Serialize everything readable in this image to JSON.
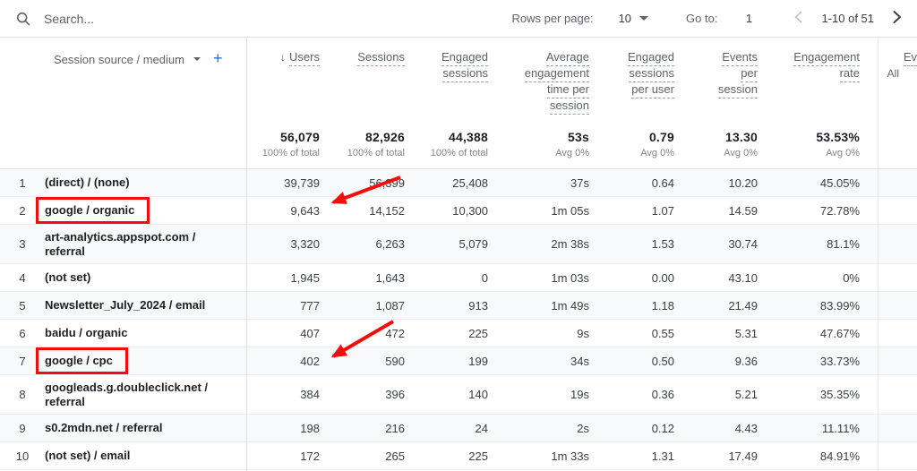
{
  "toolbar": {
    "search_placeholder": "Search...",
    "rows_per_page_label": "Rows per page:",
    "rows_per_page_value": "10",
    "goto_label": "Go to:",
    "goto_value": "1",
    "pagination_range": "1-10 of 51"
  },
  "table": {
    "dimension_header": "Session source / medium",
    "add_label": "+",
    "columns": [
      {
        "id": "users",
        "lines": [
          "Users"
        ],
        "sorted": true,
        "total": "56,079",
        "total_sub": "100% of total"
      },
      {
        "id": "sessions",
        "lines": [
          "Sessions"
        ],
        "total": "82,926",
        "total_sub": "100% of total"
      },
      {
        "id": "engaged-sessions",
        "lines": [
          "Engaged",
          "sessions"
        ],
        "total": "44,388",
        "total_sub": "100% of total"
      },
      {
        "id": "average-engagement-time-per-session",
        "lines": [
          "Average",
          "engagement",
          "time per",
          "session"
        ],
        "total": "53s",
        "total_sub": "Avg 0%"
      },
      {
        "id": "engaged-sessions-per-user",
        "lines": [
          "Engaged",
          "sessions",
          "per user"
        ],
        "total": "0.79",
        "total_sub": "Avg 0%"
      },
      {
        "id": "events-per-session",
        "lines": [
          "Events",
          "per",
          "session"
        ],
        "total": "13.30",
        "total_sub": "Avg 0%"
      },
      {
        "id": "engagement-rate",
        "lines": [
          "Engagement",
          "rate"
        ],
        "total": "53.53%",
        "total_sub": "Avg 0%"
      },
      {
        "id": "event-count-partial",
        "lines": [
          "Ev",
          "All"
        ],
        "partial": true,
        "total": "",
        "total_sub": ""
      }
    ],
    "rows": [
      {
        "num": "1",
        "dimension": "(direct) / (none)",
        "values": [
          "39,739",
          "56,399",
          "25,408",
          "37s",
          "0.64",
          "10.20",
          "45.05%"
        ]
      },
      {
        "num": "2",
        "dimension": "google / organic",
        "highlighted": true,
        "values": [
          "9,643",
          "14,152",
          "10,300",
          "1m 05s",
          "1.07",
          "14.59",
          "72.78%"
        ]
      },
      {
        "num": "3",
        "dimension": "art-analytics.appspot.com / referral",
        "values": [
          "3,320",
          "6,263",
          "5,079",
          "2m 38s",
          "1.53",
          "30.74",
          "81.1%"
        ]
      },
      {
        "num": "4",
        "dimension": "(not set)",
        "values": [
          "1,945",
          "1,643",
          "0",
          "1m 03s",
          "0.00",
          "43.10",
          "0%"
        ]
      },
      {
        "num": "5",
        "dimension": "Newsletter_July_2024 / email",
        "values": [
          "777",
          "1,087",
          "913",
          "1m 49s",
          "1.18",
          "21.49",
          "83.99%"
        ]
      },
      {
        "num": "6",
        "dimension": "baidu / organic",
        "values": [
          "407",
          "472",
          "225",
          "9s",
          "0.55",
          "5.31",
          "47.67%"
        ]
      },
      {
        "num": "7",
        "dimension": "google / cpc",
        "highlighted": true,
        "values": [
          "402",
          "590",
          "199",
          "34s",
          "0.50",
          "9.36",
          "33.73%"
        ]
      },
      {
        "num": "8",
        "dimension": "googleads.g.doubleclick.net / referral",
        "values": [
          "384",
          "396",
          "140",
          "19s",
          "0.36",
          "5.21",
          "35.35%"
        ]
      },
      {
        "num": "9",
        "dimension": "s0.2mdn.net / referral",
        "values": [
          "198",
          "216",
          "24",
          "2s",
          "0.12",
          "4.43",
          "11.11%"
        ]
      },
      {
        "num": "10",
        "dimension": "(not set) / email",
        "values": [
          "172",
          "265",
          "225",
          "1m 33s",
          "1.31",
          "17.49",
          "84.91%"
        ]
      }
    ]
  },
  "annotations": {
    "highlighted_rows": [
      "google / organic",
      "google / cpc"
    ],
    "arrows": [
      {
        "points_to": "Users value 9,643 of google / organic"
      },
      {
        "points_to": "Users value 402 of google / cpc"
      }
    ],
    "annotation_color": "#f20d0d"
  },
  "colors": {
    "accent_blue": "#1a73e8",
    "stripe": "#f8f9fa",
    "divider": "#e0e0e0",
    "label_gray": "#5f6368",
    "value_gray": "#3c4043",
    "dark_text": "#202124"
  }
}
